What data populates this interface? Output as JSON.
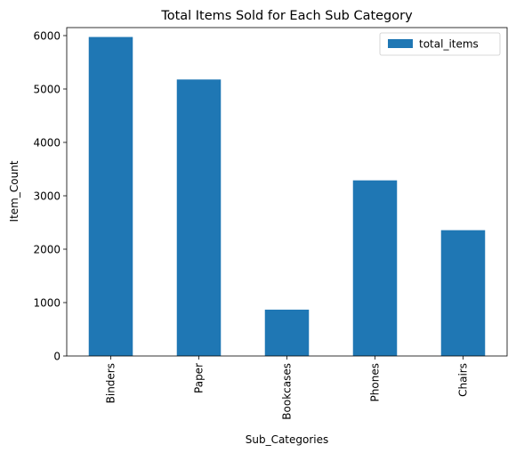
{
  "chart_data": {
    "type": "bar",
    "title": "Total Items Sold for Each Sub Category",
    "xlabel": "Sub_Categories",
    "ylabel": "Item_Count",
    "categories": [
      "Binders",
      "Paper",
      "Bookcases",
      "Phones",
      "Chairs"
    ],
    "series": [
      {
        "name": "total_items",
        "values": [
          5974,
          5178,
          868,
          3289,
          2356
        ]
      }
    ],
    "ylim": [
      0,
      6150
    ],
    "yticks": [
      0,
      1000,
      2000,
      3000,
      4000,
      5000,
      6000
    ],
    "grid": false,
    "legend_position": "top-right",
    "bar_color": "#1f77b4"
  }
}
